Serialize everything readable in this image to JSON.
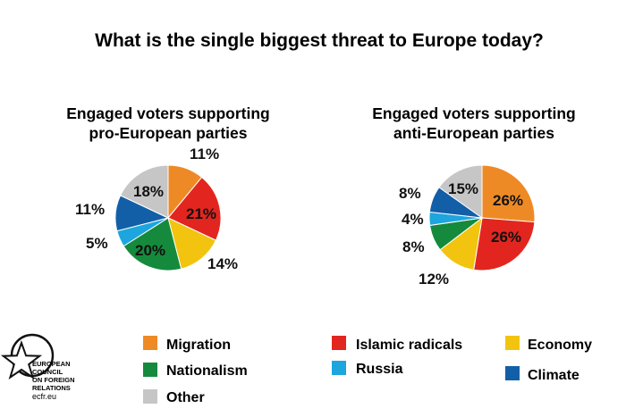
{
  "title": "What is the single biggest threat to Europe today?",
  "logo": {
    "lines": [
      "EUROPEAN",
      "COUNCIL",
      "ON FOREIGN",
      "RELATIONS"
    ],
    "url": "ecfr.eu"
  },
  "colors": {
    "Migration": "#ee8a25",
    "Islamic radicals": "#e2261f",
    "Economy": "#f2c40f",
    "Nationalism": "#158a3c",
    "Russia": "#1da5dd",
    "Climate": "#125fa8",
    "Other": "#c6c6c6"
  },
  "legend": {
    "items": [
      "Migration",
      "Islamic radicals",
      "Economy",
      "Nationalism",
      "Russia",
      "Climate",
      "Other"
    ]
  },
  "chart_data": [
    {
      "type": "pie",
      "title": "Engaged voters supporting pro-European parties",
      "title_lines": [
        "Engaged voters supporting",
        "pro-European parties"
      ],
      "categories": [
        "Migration",
        "Islamic radicals",
        "Economy",
        "Nationalism",
        "Russia",
        "Climate",
        "Other"
      ],
      "values": [
        11,
        21,
        14,
        20,
        5,
        11,
        18
      ],
      "labels": [
        "11%",
        "21%",
        "14%",
        "20%",
        "5%",
        "11%",
        "18%"
      ]
    },
    {
      "type": "pie",
      "title": "Engaged voters supporting anti-European parties",
      "title_lines": [
        "Engaged voters supporting",
        "anti-European parties"
      ],
      "categories": [
        "Migration",
        "Islamic radicals",
        "Economy",
        "Nationalism",
        "Russia",
        "Climate",
        "Other"
      ],
      "values": [
        26,
        26,
        12,
        8,
        4,
        8,
        15
      ],
      "labels": [
        "26%",
        "26%",
        "12%",
        "8%",
        "4%",
        "8%",
        "15%"
      ]
    }
  ]
}
